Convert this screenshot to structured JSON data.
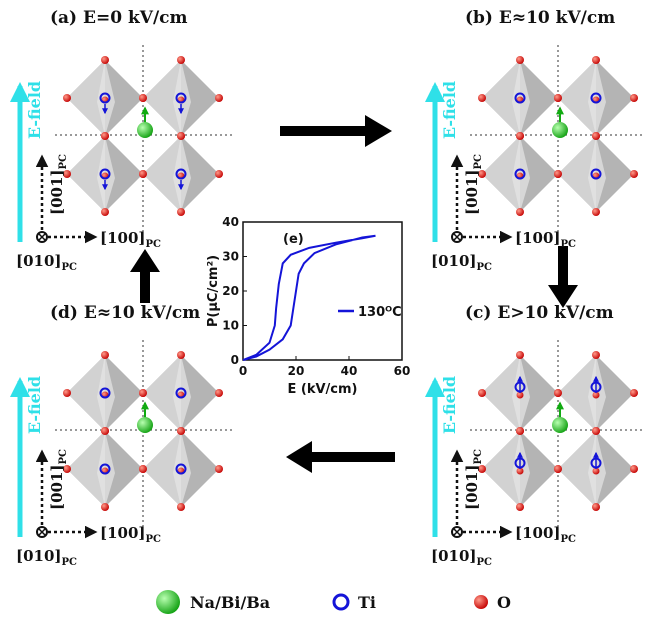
{
  "panels": [
    {
      "label": "(a) E=0 kV/cm",
      "field": "E-field",
      "axes": [
        {
          "text": "[001]",
          "sub": "PC"
        },
        {
          "text": "[100]",
          "sub": "PC"
        },
        {
          "text": "[010]",
          "sub": "PC"
        }
      ]
    },
    {
      "label": "(b) E≈10 kV/cm",
      "field": "E-field",
      "axes": [
        {
          "text": "[001]",
          "sub": "PC"
        },
        {
          "text": "[100]",
          "sub": "PC"
        },
        {
          "text": "[010]",
          "sub": "PC"
        }
      ]
    },
    {
      "label": "(c) E>10 kV/cm",
      "field": "E-field",
      "axes": [
        {
          "text": "[001]",
          "sub": "PC"
        },
        {
          "text": "[100]",
          "sub": "PC"
        },
        {
          "text": "[010]",
          "sub": "PC"
        }
      ]
    },
    {
      "label": "(d) E≈10 kV/cm",
      "field": "E-field",
      "axes": [
        {
          "text": "[001]",
          "sub": "PC"
        },
        {
          "text": "[100]",
          "sub": "PC"
        },
        {
          "text": "[010]",
          "sub": "PC"
        }
      ]
    }
  ],
  "inset": {
    "type": "line",
    "label": "(e)",
    "xlabel": "E (kV/cm)",
    "ylabel": "P(μC/cm²)",
    "x": [
      0,
      5,
      10,
      15,
      18,
      19,
      20,
      21,
      23,
      27,
      35,
      45,
      50,
      45,
      35,
      25,
      18,
      15,
      13.5,
      12.5,
      12,
      10,
      5,
      0
    ],
    "series": [
      {
        "name": "130ᴼC",
        "color": "#1414d8",
        "values": [
          0,
          1,
          3,
          6,
          10,
          15,
          20,
          25,
          28,
          31,
          33.5,
          35.5,
          36,
          35.3,
          34,
          32.5,
          30.5,
          28,
          22,
          15,
          10,
          5,
          1.5,
          0
        ]
      }
    ],
    "xlim": [
      0,
      60
    ],
    "ylim": [
      0,
      40
    ],
    "xticks": [
      0,
      20,
      40,
      60
    ],
    "yticks": [
      0,
      10,
      20,
      30,
      40
    ]
  },
  "legend": [
    "Na/Bi/Ba",
    "Ti",
    "O"
  ]
}
